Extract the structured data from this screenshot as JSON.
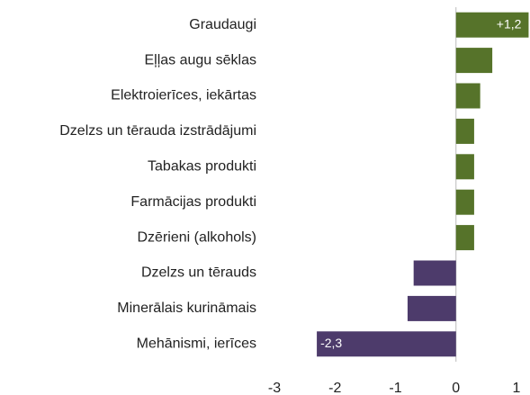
{
  "chart_data": {
    "type": "barh",
    "categories": [
      "Graudaugi",
      "Eļļas augu sēklas",
      "Elektroierīces, iekārtas",
      "Dzelzs un tērauda izstrādājumi",
      "Tabakas produkti",
      "Farmācijas produkti",
      "Dzērieni (alkohols)",
      "Dzelzs un tērauds",
      "Minerālais kurināmais",
      "Mehānismi, ierīces"
    ],
    "values": [
      1.2,
      0.6,
      0.4,
      0.3,
      0.3,
      0.3,
      0.3,
      -0.7,
      -0.8,
      -2.3
    ],
    "value_labels": [
      "+1,2",
      null,
      null,
      null,
      null,
      null,
      null,
      null,
      null,
      "-2,3"
    ],
    "positive_color": "#56732a",
    "negative_color": "#4d3b6b",
    "xlim": [
      -3,
      1
    ],
    "xticks": [
      -3,
      -2,
      -1,
      0,
      1
    ]
  }
}
